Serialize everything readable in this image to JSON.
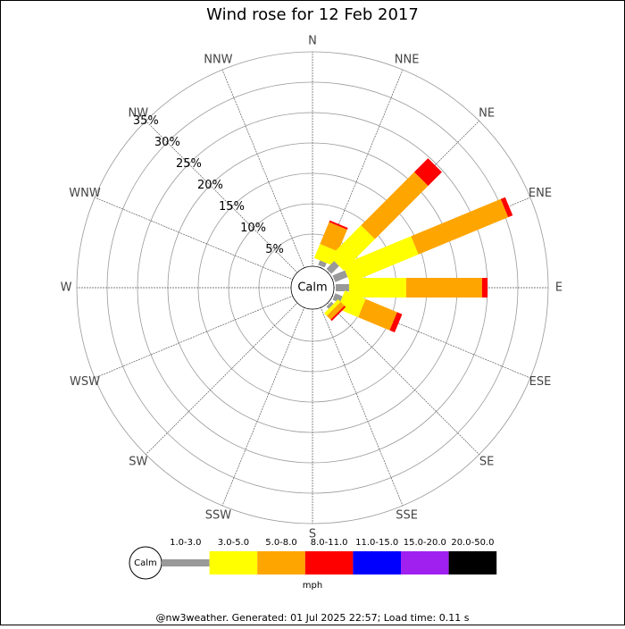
{
  "chart_data": {
    "type": "windrose",
    "title": "Wind rose for 12 Feb 2017",
    "categories": [
      "N",
      "NNE",
      "NE",
      "ENE",
      "E",
      "ESE",
      "SE",
      "SSE",
      "S",
      "SSW",
      "SW",
      "WSW",
      "W",
      "WNW",
      "NW",
      "NNW"
    ],
    "calm_label": "Calm",
    "units": "mph",
    "series": [
      {
        "name": "1.0-3.0",
        "color": "#999999",
        "values": [
          0,
          0.8,
          1.8,
          2.2,
          2.2,
          1.3,
          0.5,
          0,
          0,
          0,
          0,
          0,
          0,
          0,
          0,
          0
        ]
      },
      {
        "name": "3.0-5.0",
        "color": "#ffff00",
        "values": [
          0,
          2.5,
          7.3,
          12.2,
          9.4,
          3.7,
          0.6,
          0,
          0,
          0,
          0,
          0,
          0,
          0,
          0,
          0
        ]
      },
      {
        "name": "5.0-8.0",
        "color": "#ffa500",
        "values": [
          0,
          3.9,
          12.4,
          16.0,
          12.5,
          5.6,
          0.9,
          0,
          0,
          0,
          0,
          0,
          0,
          0,
          0,
          0
        ]
      },
      {
        "name": "8.0-11.0",
        "color": "#ff0000",
        "values": [
          0,
          0.3,
          3.2,
          0.8,
          0.9,
          0.9,
          0.3,
          0,
          0,
          0,
          0,
          0,
          0,
          0,
          0,
          0
        ]
      },
      {
        "name": "11.0-15.0",
        "color": "#0000ff",
        "values": [
          0,
          0,
          0,
          0,
          0,
          0,
          0,
          0,
          0,
          0,
          0,
          0,
          0,
          0,
          0,
          0
        ]
      },
      {
        "name": "15.0-20.0",
        "color": "#a020f0",
        "values": [
          0,
          0,
          0,
          0,
          0,
          0,
          0,
          0,
          0,
          0,
          0,
          0,
          0,
          0,
          0,
          0
        ]
      },
      {
        "name": "20.0-50.0",
        "color": "#000000",
        "values": [
          0,
          0,
          0,
          0,
          0,
          0,
          0,
          0,
          0,
          0,
          0,
          0,
          0,
          0,
          0,
          0
        ]
      }
    ],
    "ylim": [
      0,
      35
    ],
    "yticks": [
      {
        "value": 5,
        "label": "5%"
      },
      {
        "value": 10,
        "label": "10%"
      },
      {
        "value": 15,
        "label": "15%"
      },
      {
        "value": 20,
        "label": "20%"
      },
      {
        "value": 25,
        "label": "25%"
      },
      {
        "value": 30,
        "label": "30%"
      },
      {
        "value": 35,
        "label": "35%"
      }
    ],
    "footer": "@nw3weather. Generated: 01 Jul 2025 22:57; Load time: 0.11 s"
  }
}
